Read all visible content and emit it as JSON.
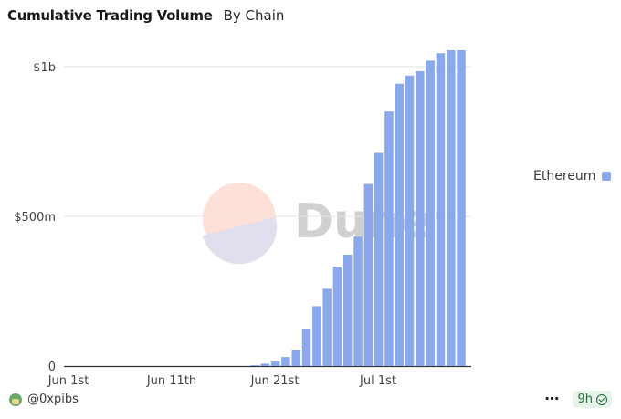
{
  "header": {
    "title": "Cumulative Trading Volume",
    "subtitle": "By Chain"
  },
  "watermark": {
    "text": "Dune"
  },
  "footer": {
    "author": "@0xpibs",
    "age": "9h"
  },
  "colors": {
    "bar": "#8aa9ec",
    "grid": "#e6e6e6",
    "axis": "#333333"
  },
  "chart_data": {
    "type": "bar",
    "title": "Cumulative Trading Volume",
    "subtitle": "By Chain",
    "xlabel": "",
    "ylabel": "",
    "x_tick_labels": [
      "Jun 1st",
      "Jun 11th",
      "Jun 21st",
      "Jul 1st"
    ],
    "y_tick_labels": [
      "0",
      "$500m",
      "$1b"
    ],
    "ylim": [
      0,
      1100000000
    ],
    "grid": true,
    "legend_position": "right",
    "x": [
      "2023-06-19",
      "2023-06-20",
      "2023-06-21",
      "2023-06-22",
      "2023-06-23",
      "2023-06-24",
      "2023-06-25",
      "2023-06-26",
      "2023-06-27",
      "2023-06-28",
      "2023-06-29",
      "2023-06-30",
      "2023-07-01",
      "2023-07-02",
      "2023-07-03",
      "2023-07-04",
      "2023-07-05",
      "2023-07-06",
      "2023-07-07",
      "2023-07-08",
      "2023-07-09"
    ],
    "series": [
      {
        "name": "Ethereum",
        "values": [
          3000000,
          8000000,
          15000000,
          30000000,
          55000000,
          125000000,
          200000000,
          258000000,
          332000000,
          372000000,
          432000000,
          608000000,
          712000000,
          850000000,
          943000000,
          970000000,
          985000000,
          1020000000,
          1045000000,
          1055000000,
          1055000000
        ]
      }
    ]
  }
}
